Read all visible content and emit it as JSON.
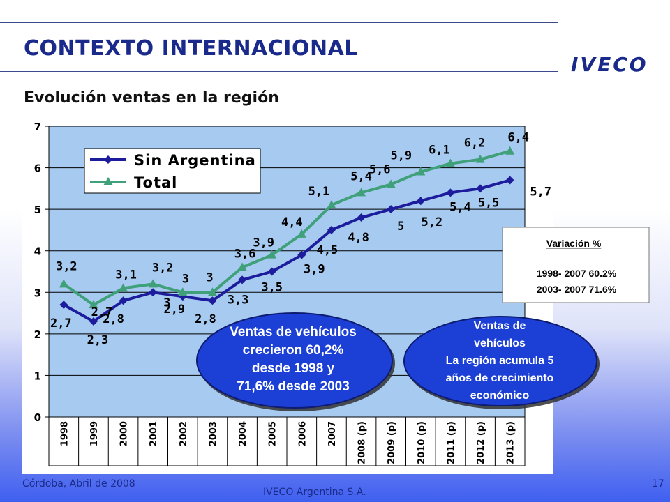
{
  "header": {
    "title": "CONTEXTO INTERNACIONAL",
    "logo": "IVECO",
    "subtitle": "Evolución ventas en la región"
  },
  "chart_data": {
    "type": "line",
    "categories": [
      "1998",
      "1999",
      "2000",
      "2001",
      "2002",
      "2003",
      "2004",
      "2005",
      "2006",
      "2007",
      "2008 (p)",
      "2009 (p)",
      "2010 (p)",
      "2011 (p)",
      "2012 (p)",
      "2013 (p)"
    ],
    "series": [
      {
        "name": "Sin Argentina",
        "color": "#1c1c9c",
        "values": [
          2.7,
          2.3,
          2.8,
          3.0,
          2.9,
          2.8,
          3.3,
          3.5,
          3.9,
          4.5,
          4.8,
          5.0,
          5.2,
          5.4,
          5.5,
          5.7
        ],
        "labels": [
          "2,7",
          "2,3",
          "2,8",
          "3",
          "2,9",
          "2,8",
          "3,3",
          "3,5",
          "3,9",
          "4,5",
          "4,8",
          "5",
          "5,2",
          "5,4",
          "5,5",
          "5,7"
        ]
      },
      {
        "name": "Total",
        "color": "#3fa07a",
        "values": [
          3.2,
          2.7,
          3.1,
          3.2,
          3.0,
          3.0,
          3.6,
          3.9,
          4.4,
          5.1,
          5.4,
          5.6,
          5.9,
          6.1,
          6.2,
          6.4
        ],
        "labels": [
          "3,2",
          "2,7",
          "3,1",
          "3,2",
          "3",
          "3",
          "3,6",
          "3,9",
          "4,4",
          "5,1",
          "5,4",
          "5,6",
          "5,9",
          "6,1",
          "6,2",
          "6,4"
        ]
      }
    ],
    "yticks": [
      "0",
      "1",
      "2",
      "3",
      "4",
      "5",
      "6",
      "7"
    ],
    "ylim": [
      0,
      7
    ],
    "grid": true,
    "legend": "top-left",
    "plot_background": "#a6caf0"
  },
  "annotations": {
    "variation_box": {
      "title": "Variación %",
      "rows": [
        "1998- 2007    60.2%",
        "2003- 2007    71.6%"
      ]
    },
    "ellipse_left": [
      "Ventas de vehículos",
      "crecieron 60,2%",
      "desde 1998 y",
      "71,6% desde 2003"
    ],
    "ellipse_right": [
      "Ventas de",
      "vehículos",
      "La región acumula 5",
      "años de crecimiento",
      "económico"
    ]
  },
  "footer": {
    "location_date": "Córdoba, Abril de 2008",
    "company": "IVECO Argentina S.A.",
    "page_number": "17"
  }
}
